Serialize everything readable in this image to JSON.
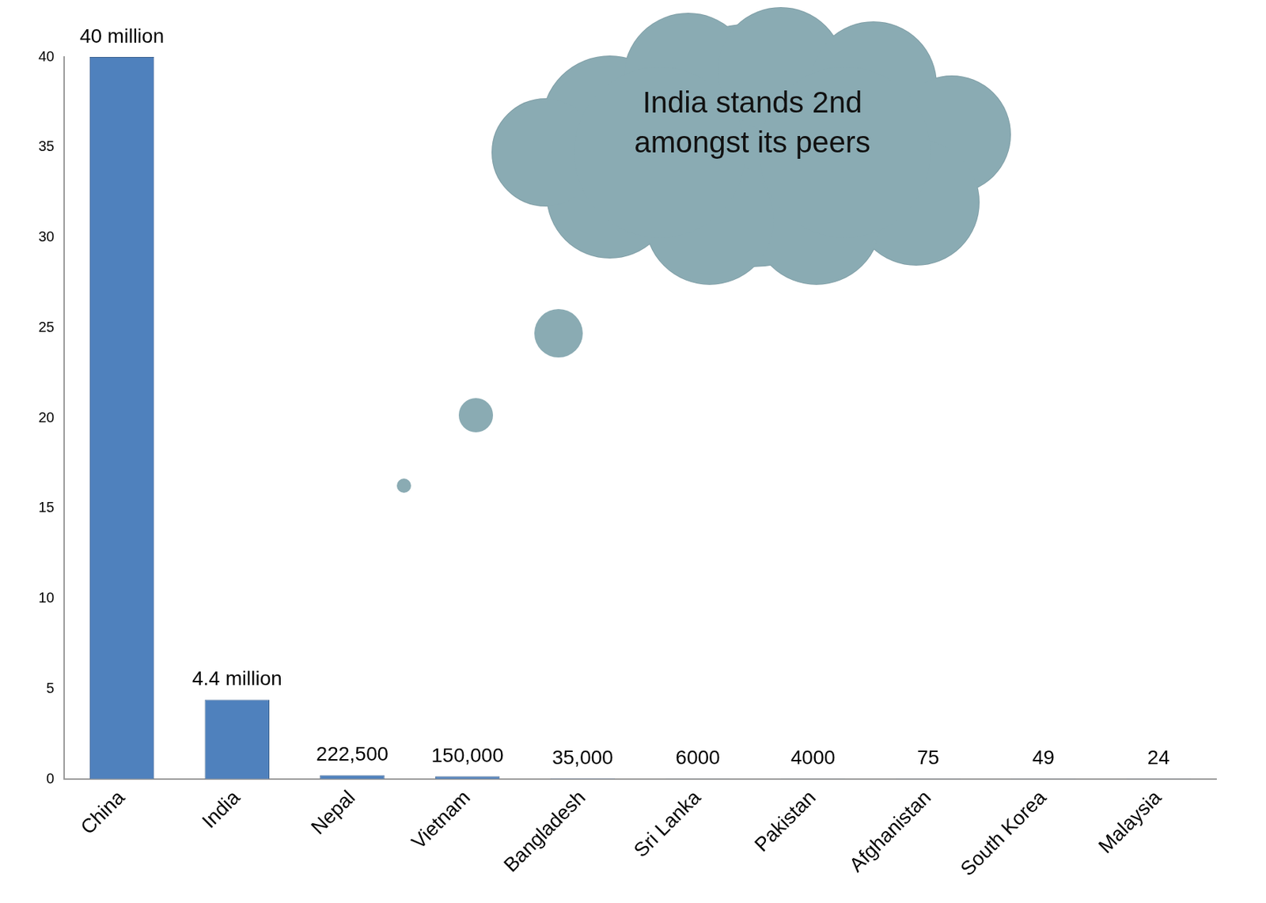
{
  "chart_data": {
    "type": "bar",
    "annotations": [
      "India stands 2nd amongst its peers"
    ],
    "categories": [
      "China",
      "India",
      "Nepal",
      "Vietnam",
      "Bangladesh",
      "Sri Lanka",
      "Pakistan",
      "Afghanistan",
      "South Korea",
      "Malaysia"
    ],
    "values": [
      40,
      4.4,
      0.2225,
      0.15,
      0.035,
      0.006,
      0.004,
      7.5e-05,
      4.9e-05,
      2.4e-05
    ],
    "value_labels": [
      "40 million",
      "4.4 million",
      "222,500",
      "150,000",
      "35,000",
      "6000",
      "4000",
      "75",
      "49",
      "24"
    ],
    "color": "#4f81bd",
    "ylim": [
      0,
      40
    ],
    "yticks": [
      0,
      5,
      10,
      15,
      20,
      25,
      30,
      35,
      40
    ],
    "grid": false,
    "data_labels": true
  }
}
